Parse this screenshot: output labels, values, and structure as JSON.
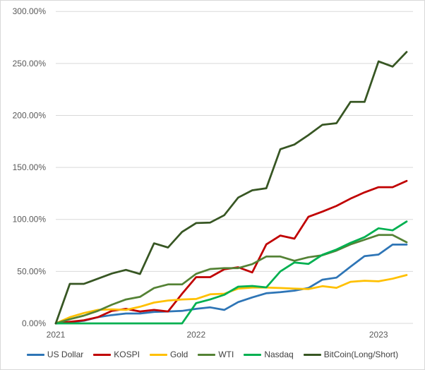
{
  "chart_data": {
    "type": "line",
    "title": "",
    "grid": true,
    "legend_position": "bottom",
    "y_axis": {
      "min": 0,
      "max": 300,
      "step": 50,
      "tick_labels": [
        "0.00%",
        "50.00%",
        "100.00%",
        "150.00%",
        "200.00%",
        "250.00%",
        "300.00%"
      ]
    },
    "x_axis": {
      "point_count": 26,
      "tick_labels": [
        "2021",
        "2022",
        "2023"
      ],
      "tick_indices": [
        0,
        10,
        23
      ]
    },
    "series": [
      {
        "name": "US Dollar",
        "color": "#2E75B6",
        "values": [
          0,
          1,
          2.5,
          6,
          8,
          9.5,
          9.5,
          11,
          11.5,
          12,
          14,
          15.4,
          13,
          20.5,
          25,
          29,
          30,
          31.5,
          34,
          42,
          44,
          54.5,
          64.7,
          66.2,
          75.8,
          75.8
        ]
      },
      {
        "name": "KOSPI",
        "color": "#C00000",
        "values": [
          0,
          1.5,
          3,
          6,
          12,
          14,
          11.5,
          13,
          11.5,
          28.5,
          44.5,
          44.5,
          52,
          54,
          49,
          76,
          84.5,
          81.5,
          102.5,
          107.5,
          113,
          120,
          126,
          131,
          131,
          137
        ]
      },
      {
        "name": "Gold",
        "color": "#FFC000",
        "values": [
          0,
          6,
          10,
          13,
          13.5,
          13,
          16,
          20,
          22,
          23,
          23.5,
          28,
          28.5,
          33.5,
          34.5,
          34.5,
          34,
          33.5,
          33,
          35.8,
          34.2,
          40,
          41,
          40.5,
          43,
          46.5
        ]
      },
      {
        "name": "WTI",
        "color": "#548235",
        "values": [
          0,
          4,
          7.5,
          12,
          18,
          23,
          25.5,
          34,
          37.5,
          37.5,
          47.7,
          52.3,
          53.2,
          53.2,
          57,
          64.3,
          64.3,
          60.2,
          63.6,
          65.5,
          70,
          76,
          80.5,
          85,
          85,
          78
        ]
      },
      {
        "name": "Nasdaq",
        "color": "#00B050",
        "values": [
          0,
          0,
          0,
          0,
          0,
          0,
          0,
          0,
          0,
          0,
          19.5,
          23,
          27.5,
          35.3,
          36,
          34.6,
          50,
          58.6,
          57.2,
          66,
          71,
          77.5,
          83,
          91.5,
          89.5,
          98
        ]
      },
      {
        "name": "BitCoin(Long/Short)",
        "color": "#375623",
        "values": [
          0,
          38,
          38,
          43,
          48,
          51.5,
          47.5,
          77,
          73,
          88,
          96.5,
          97,
          104,
          121,
          128,
          130,
          167.5,
          172,
          181,
          191,
          192.5,
          213,
          213,
          252,
          247,
          261
        ]
      }
    ]
  },
  "colors": {
    "gridline": "#D9D9D9",
    "axis_text": "#595959",
    "legend_text": "#404040",
    "frame_border": "#D9D9D9",
    "background": "#FFFFFF"
  }
}
